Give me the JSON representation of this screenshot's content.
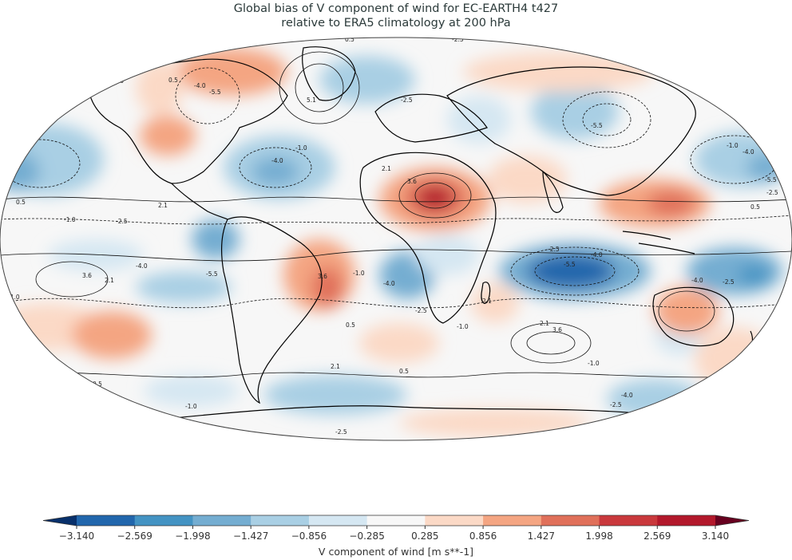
{
  "title": {
    "line1": "Global bias of V component of wind for EC-EARTH4 t427",
    "line2": "relative to ERA5 climatology at 200 hPa"
  },
  "colorbar": {
    "label": "V component of wind [m s**-1]",
    "ticks": [
      "−3.140",
      "−2.569",
      "−1.998",
      "−1.427",
      "−0.856",
      "−0.285",
      "0.285",
      "0.856",
      "1.427",
      "1.998",
      "2.569",
      "3.140"
    ],
    "colors": [
      "#08306b",
      "#2166ac",
      "#4393c3",
      "#74add1",
      "#a9cfe4",
      "#d5e7f2",
      "#f7f7f7",
      "#fbd9c6",
      "#f4a582",
      "#e0705a",
      "#c9383c",
      "#b2182b",
      "#67001f"
    ]
  },
  "map": {
    "projection": "Robinson",
    "land_outline_color": "#000000",
    "contour_labels": [
      "-1.0",
      "0.5",
      "-2.5",
      "0.5",
      "-4.0",
      "-5.5",
      "3.6",
      "0.5",
      "5.1",
      "-2.5",
      "-1.0",
      "-4.0",
      "2.1",
      "3.6",
      "-5.5",
      "-1.0",
      "-4.0",
      "-5.5",
      "-2.5",
      "0.5",
      "-1.0",
      "-2.5",
      "2.1",
      "-4.0",
      "3.6",
      "2.1",
      "-1.0",
      "-2.5",
      "-5.5",
      "-4.0",
      "-2.5",
      "-5.5",
      "3.6",
      "-1.0",
      "0.5",
      "2.1",
      "3.6",
      "-4.0",
      "2.1",
      "-1.0",
      "-2.5",
      "-4.0",
      "0.5",
      "2.1",
      "0.5",
      "-1.0",
      "-4.0",
      "-2.5",
      "-2.5",
      "-1.0",
      "-2.5",
      "-2.5",
      "0.5"
    ]
  }
}
